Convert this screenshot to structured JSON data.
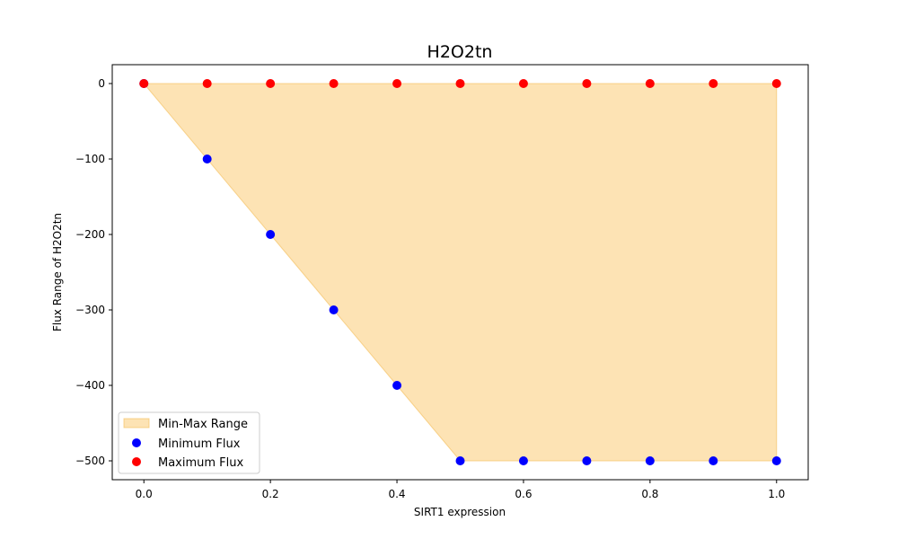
{
  "chart_data": {
    "type": "scatter",
    "title": "H2O2tn",
    "xlabel": "SIRT1 expression",
    "ylabel": "Flux Range of H2O2tn",
    "xlim": [
      -0.05,
      1.05
    ],
    "ylim": [
      -525,
      25
    ],
    "xticks": [
      0.0,
      0.2,
      0.4,
      0.6,
      0.8,
      1.0
    ],
    "xtick_labels": [
      "0.0",
      "0.2",
      "0.4",
      "0.6",
      "0.8",
      "1.0"
    ],
    "yticks": [
      0,
      -100,
      -200,
      -300,
      -400,
      -500
    ],
    "ytick_labels": [
      "0",
      "−100",
      "−200",
      "−300",
      "−400",
      "−500"
    ],
    "grid": false,
    "legend_position": "lower-left",
    "x": [
      0.0,
      0.1,
      0.2,
      0.3,
      0.4,
      0.5,
      0.6,
      0.7,
      0.8,
      0.9,
      1.0
    ],
    "fill": {
      "name": "Min-Max Range",
      "color": "#fcd48c",
      "edge_color": "#f5c060",
      "opacity": 0.65
    },
    "series": [
      {
        "name": "Minimum Flux",
        "color": "#0000ff",
        "values": [
          0,
          -100,
          -200,
          -300,
          -400,
          -500,
          -500,
          -500,
          -500,
          -500,
          -500
        ]
      },
      {
        "name": "Maximum Flux",
        "color": "#ff0000",
        "values": [
          0,
          0,
          0,
          0,
          0,
          0,
          0,
          0,
          0,
          0,
          0
        ]
      }
    ]
  }
}
